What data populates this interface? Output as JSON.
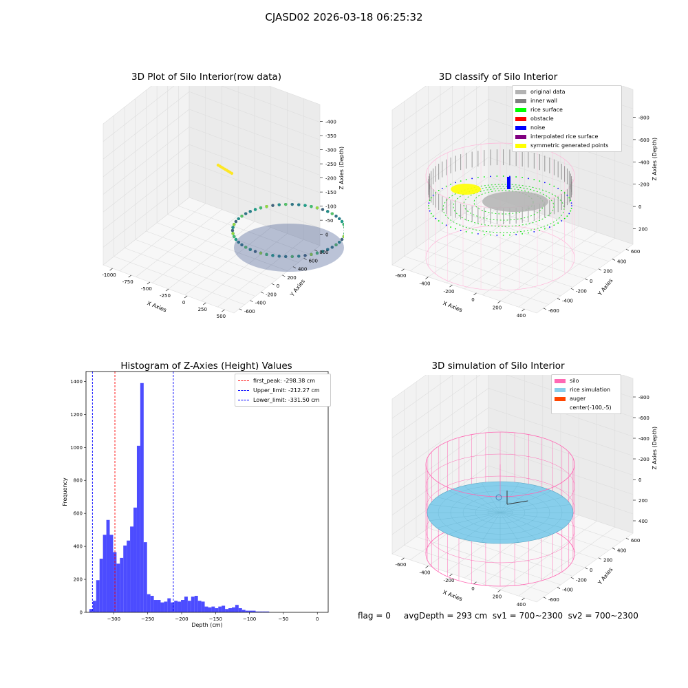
{
  "suptitle": "CJASD02 2026-03-18 06:25:32",
  "panels": {
    "raw": {
      "title": "3D Plot of Silo Interior(row data)",
      "xlabel": "X Axies",
      "ylabel": "Y Axies",
      "zlabel": "Z Axies (Depth)",
      "xticks": [
        "-1000",
        "-750",
        "-500",
        "-250",
        "0",
        "250",
        "500"
      ],
      "yticks": [
        "-600",
        "-400",
        "-200",
        "0",
        "200",
        "400",
        "600",
        "800"
      ],
      "zticks": [
        "0",
        "-50",
        "-100",
        "-150",
        "-200",
        "-250",
        "-300",
        "-350",
        "-400"
      ]
    },
    "classify": {
      "title": "3D classify of Silo Interior",
      "xlabel": "X Axies",
      "ylabel": "Y Axies",
      "zlabel": "Z Axies (Depth)",
      "xticks": [
        "-600",
        "-400",
        "-200",
        "0",
        "200",
        "400"
      ],
      "yticks": [
        "-600",
        "-400",
        "-200",
        "0",
        "200",
        "400",
        "600"
      ],
      "zticks": [
        "200",
        "0",
        "-200",
        "-400",
        "-600",
        "-800"
      ],
      "legend": [
        {
          "label": "original data",
          "color": "#b3b3b3"
        },
        {
          "label": "inner wall",
          "color": "#808080"
        },
        {
          "label": "rice surface",
          "color": "#00ff00"
        },
        {
          "label": "obstacle",
          "color": "#ff0000"
        },
        {
          "label": "noise",
          "color": "#0000ff"
        },
        {
          "label": "interpolated rice surface",
          "color": "#800080"
        },
        {
          "label": "symmetric generated points",
          "color": "#ffff00"
        }
      ]
    },
    "simulation": {
      "title": "3D simulation of Silo Interior",
      "xlabel": "X Axies",
      "ylabel": "Y Axies",
      "zlabel": "Z Axies (Depth)",
      "xticks": [
        "-600",
        "-400",
        "-200",
        "0",
        "200",
        "400"
      ],
      "yticks": [
        "-600",
        "-400",
        "-200",
        "0",
        "200",
        "400",
        "600"
      ],
      "zticks": [
        "400",
        "200",
        "0",
        "-200",
        "-400",
        "-600",
        "-800"
      ],
      "legend": [
        {
          "label": "silo",
          "color": "#ff69b4"
        },
        {
          "label": "rice simulation",
          "color": "#87ceeb"
        },
        {
          "label": "auger",
          "color": "#ff4500"
        },
        {
          "label": "center(-100,-5)",
          "color": ""
        }
      ]
    }
  },
  "chart_data": {
    "type": "bar",
    "title": "Histogram of Z-Axies (Height) Values",
    "xlabel": "Depth (cm)",
    "ylabel": "Frequency",
    "xlim": [
      -341,
      16
    ],
    "ylim": [
      0,
      1460
    ],
    "xticks": [
      -300,
      -250,
      -200,
      -150,
      -100,
      -50,
      0
    ],
    "yticks": [
      0,
      200,
      400,
      600,
      800,
      1000,
      1200,
      1400
    ],
    "bin_start": -336,
    "bin_width": 5,
    "values": [
      20,
      70,
      195,
      325,
      470,
      560,
      470,
      365,
      295,
      330,
      405,
      435,
      520,
      635,
      1010,
      1390,
      425,
      110,
      100,
      75,
      75,
      60,
      65,
      85,
      60,
      70,
      65,
      75,
      95,
      70,
      95,
      100,
      70,
      65,
      35,
      30,
      35,
      25,
      35,
      40,
      20,
      25,
      30,
      45,
      25,
      15,
      10,
      10,
      10,
      5,
      5,
      5,
      5
    ],
    "lines": [
      {
        "label": "first_peak: -298.38 cm",
        "x": -298.38,
        "color": "#ff0000"
      },
      {
        "label": "Upper_limit: -212.27 cm",
        "x": -212.27,
        "color": "#0000ff"
      },
      {
        "label": "Lower_limit: -331.50 cm",
        "x": -331.5,
        "color": "#0000ff"
      }
    ],
    "bar_color": "#4c4cff",
    "legend": "top-right"
  },
  "footer": {
    "text": "flag = 0     avgDepth = 293 cm  sv1 = 700~2300  sv2 = 700~2300"
  }
}
